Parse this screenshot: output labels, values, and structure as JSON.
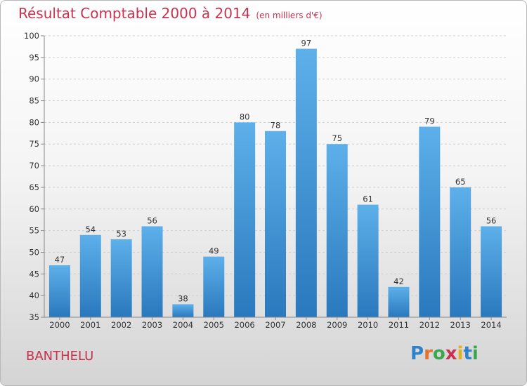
{
  "header": {
    "title": "Résultat Comptable 2000 à 2014",
    "subtitle": "(en milliers d'€)"
  },
  "footer": {
    "commune": "BANTHELU",
    "logo_letters": [
      "P",
      "r",
      "o",
      "x",
      "i",
      "t",
      "i"
    ],
    "logo_colors": [
      "#2f82c8",
      "#e2742a",
      "#3aa84a",
      "#c8324e",
      "#e2b020",
      "#2f82c8",
      "#3aa84a"
    ]
  },
  "chart_data": {
    "type": "bar",
    "categories": [
      "2000",
      "2001",
      "2002",
      "2003",
      "2004",
      "2005",
      "2006",
      "2007",
      "2008",
      "2009",
      "2010",
      "2011",
      "2012",
      "2013",
      "2014"
    ],
    "values": [
      47,
      54,
      53,
      56,
      38,
      49,
      80,
      78,
      97,
      75,
      61,
      42,
      79,
      65,
      56
    ],
    "ylim": [
      35,
      100
    ],
    "yticks": [
      35,
      40,
      45,
      50,
      55,
      60,
      65,
      70,
      75,
      80,
      85,
      90,
      95,
      100
    ],
    "grid": "horizontal dashed",
    "colors": {
      "bar_top": "#5db0ea",
      "bar_bottom": "#2a78bd",
      "grid": "#cfcfcf",
      "axis": "#888888"
    }
  }
}
